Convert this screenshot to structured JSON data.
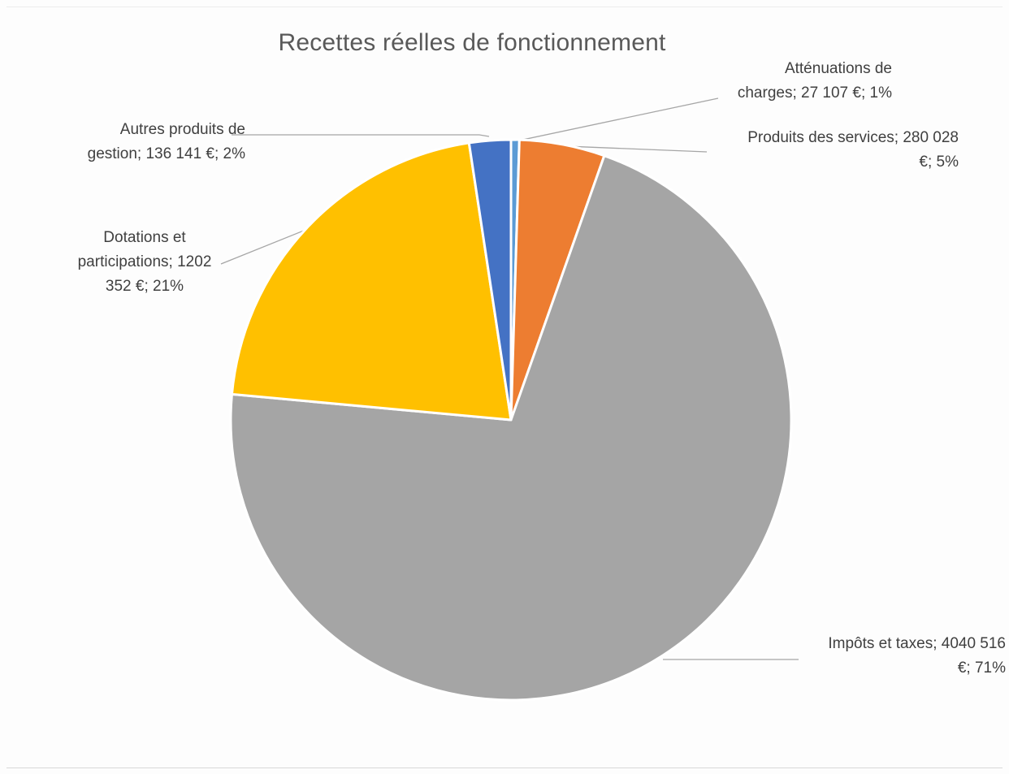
{
  "chart_data": {
    "type": "pie",
    "title": "Recettes réelles de fonctionnement",
    "categories": [
      "Atténuations de charges",
      "Produits des services",
      "Impôts et taxes",
      "Dotations et participations",
      "Autres produits de gestion"
    ],
    "values": [
      27107,
      280028,
      4040516,
      1202352,
      136141
    ],
    "percentages": [
      1,
      5,
      71,
      21,
      2
    ],
    "colors": [
      "#5b9bd5",
      "#ed7d31",
      "#a5a5a5",
      "#ffc000",
      "#4472c4"
    ],
    "data_labels": [
      "Atténuations de\ncharges; 27 107 €; 1%",
      "Produits des services; 280 028\n€; 5%",
      "Impôts et taxes; 4040 516\n€; 71%",
      "Dotations et\nparticipations; 1202\n352 €; 21%",
      "Autres produits de\ngestion; 136 141 €; 2%"
    ],
    "legend": "none",
    "start_angle": "top, clockwise"
  }
}
